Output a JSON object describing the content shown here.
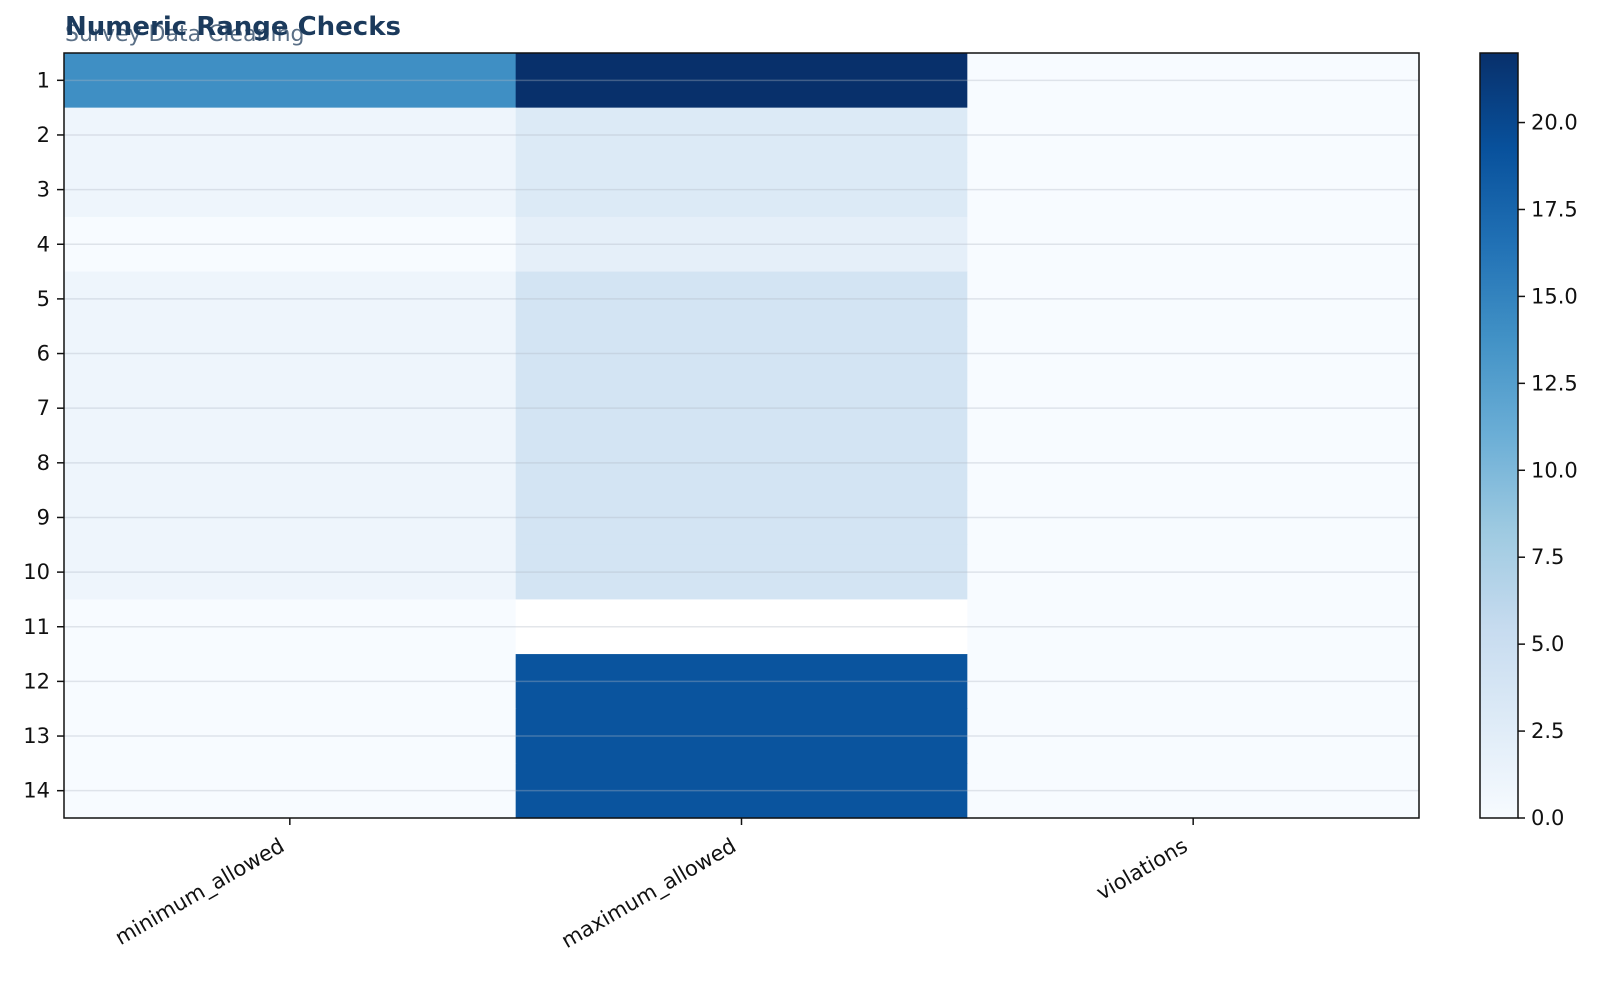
{
  "title": "Numeric Range Checks",
  "subtitle": "Survey Data Cleaning",
  "chart_data": {
    "type": "heatmap",
    "title": "Numeric Range Checks",
    "subtitle": "Survey Data Cleaning",
    "columns": [
      "minimum_allowed",
      "maximum_allowed",
      "violations"
    ],
    "rows": [
      "1",
      "2",
      "3",
      "4",
      "5",
      "6",
      "7",
      "8",
      "9",
      "10",
      "11",
      "12",
      "13",
      "14"
    ],
    "values": [
      [
        14,
        22,
        0
      ],
      [
        1,
        3,
        0
      ],
      [
        1,
        3,
        0
      ],
      [
        0,
        2,
        0
      ],
      [
        1,
        4,
        0
      ],
      [
        1,
        4,
        0
      ],
      [
        1,
        4,
        0
      ],
      [
        1,
        4,
        0
      ],
      [
        1,
        4,
        0
      ],
      [
        1,
        4,
        0
      ],
      [
        0,
        -1,
        0
      ],
      [
        0,
        19,
        0
      ],
      [
        0,
        19,
        0
      ],
      [
        0,
        19,
        0
      ]
    ],
    "colorbar": {
      "colormap": "Blues",
      "vmin": 0,
      "vmax": 22,
      "ticks": [
        "0.0",
        "2.5",
        "5.0",
        "7.5",
        "10.0",
        "12.5",
        "15.0",
        "17.5",
        "20.0"
      ]
    },
    "grid": true
  }
}
